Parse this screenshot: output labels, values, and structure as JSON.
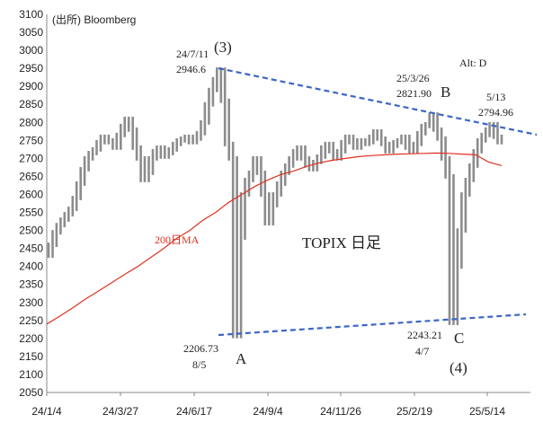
{
  "chart_data": {
    "type": "line",
    "source": "(出所) Bloomberg",
    "alt_label": "Alt: D",
    "title": "TOPIX 日足",
    "ylim": [
      2050,
      3100
    ],
    "yticks": [
      2050,
      2100,
      2150,
      2200,
      2250,
      2300,
      2350,
      2400,
      2450,
      2500,
      2550,
      2600,
      2650,
      2700,
      2750,
      2800,
      2850,
      2900,
      2950,
      3000,
      3050,
      3100
    ],
    "x_tick_labels": [
      "24/1/4",
      "24/3/27",
      "24/6/17",
      "24/9/4",
      "24/11/26",
      "25/2/19",
      "25/5/14"
    ],
    "grid": false,
    "colors": {
      "price": "#8c8c8c",
      "ma": "#e03020",
      "trend": "#3a66c4",
      "axis": "#888888"
    },
    "series": [
      {
        "name": "TOPIX",
        "values": [
          2430,
          2460,
          2495,
          2515,
          2530,
          2545,
          2560,
          2590,
          2630,
          2670,
          2700,
          2715,
          2725,
          2745,
          2760,
          2750,
          2745,
          2730,
          2765,
          2790,
          2810,
          2780,
          2730,
          2700,
          2640,
          2660,
          2700,
          2720,
          2730,
          2705,
          2715,
          2725,
          2740,
          2750,
          2755,
          2760,
          2745,
          2755,
          2770,
          2800,
          2850,
          2890,
          2920,
          2946.6,
          2860,
          2740,
          2700,
          2206.73,
          2480,
          2600,
          2640,
          2660,
          2700,
          2660,
          2600,
          2520,
          2570,
          2600,
          2630,
          2660,
          2680,
          2700,
          2720,
          2730,
          2700,
          2680,
          2670,
          2690,
          2705,
          2730,
          2740,
          2720,
          2700,
          2720,
          2745,
          2760,
          2745,
          2730,
          2750,
          2740,
          2745,
          2760,
          2775,
          2755,
          2740,
          2720,
          2735,
          2745,
          2750,
          2760,
          2730,
          2720,
          2740,
          2770,
          2790,
          2795,
          2821.9,
          2780,
          2755,
          2700,
          2650,
          2243.21,
          2400,
          2500,
          2600,
          2640,
          2680,
          2720,
          2750,
          2765,
          2780,
          2794.96,
          2760,
          2745
        ]
      },
      {
        "name": "200日MA",
        "values": [
          2240,
          2262,
          2285,
          2310,
          2332,
          2355,
          2378,
          2400,
          2425,
          2450,
          2478,
          2500,
          2528,
          2550,
          2578,
          2600,
          2622,
          2640,
          2655,
          2665,
          2678,
          2688,
          2695,
          2700,
          2705,
          2708,
          2710,
          2712,
          2713,
          2714,
          2715,
          2714,
          2712,
          2710,
          2690,
          2680
        ]
      }
    ],
    "annotations": {
      "wave3": "(3)",
      "peak_date": "24/7/11",
      "peak_value": "2946.6",
      "wave_a": "A",
      "low_a_value": "2206.73",
      "low_a_date": "8/5",
      "wave_b": "B",
      "b_date": "25/3/26",
      "b_value": "2821.90",
      "wave_c": "C",
      "low_c_value": "2243.21",
      "low_c_date": "4/7",
      "wave4": "(4)",
      "latest_date": "5/13",
      "latest_value": "2794.96",
      "ma_label": "200日MA"
    }
  }
}
